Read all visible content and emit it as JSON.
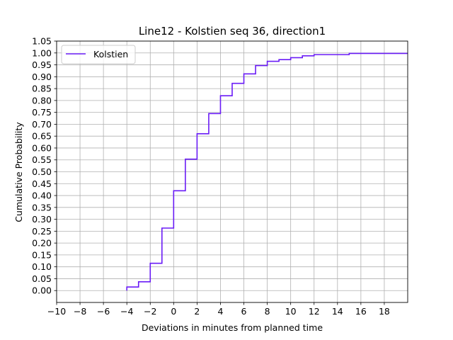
{
  "chart_data": {
    "type": "line",
    "title": "Line12 - Kolstien seq 36, direction1",
    "xlabel": "Deviations in minutes from planned time",
    "ylabel": "Cumulative Probability",
    "xlim": [
      -10,
      20
    ],
    "ylim": [
      -0.05,
      1.05
    ],
    "xticks": [
      -10,
      -8,
      -6,
      -4,
      -2,
      0,
      2,
      4,
      6,
      8,
      10,
      12,
      14,
      16,
      18
    ],
    "xtick_labels": [
      "−10",
      "−8",
      "−6",
      "−4",
      "−2",
      "0",
      "2",
      "4",
      "6",
      "8",
      "10",
      "12",
      "14",
      "16",
      "18"
    ],
    "yticks": [
      0.0,
      0.05,
      0.1,
      0.15,
      0.2,
      0.25,
      0.3,
      0.35,
      0.4,
      0.45,
      0.5,
      0.55,
      0.6,
      0.65,
      0.7,
      0.75,
      0.8,
      0.85,
      0.9,
      0.95,
      1.0,
      1.05
    ],
    "ytick_labels": [
      "0.00",
      "0.05",
      "0.10",
      "0.15",
      "0.20",
      "0.25",
      "0.30",
      "0.35",
      "0.40",
      "0.45",
      "0.50",
      "0.55",
      "0.60",
      "0.65",
      "0.70",
      "0.75",
      "0.80",
      "0.85",
      "0.90",
      "0.95",
      "1.00",
      "1.05"
    ],
    "grid": true,
    "legend_position": "top-left",
    "step": "post",
    "series": [
      {
        "name": "Kolstien",
        "color": "#6a1cf6",
        "x": [
          -4,
          -3,
          -2,
          -1,
          0,
          1,
          2,
          3,
          4,
          5,
          6,
          7,
          8,
          9,
          10,
          11,
          12,
          15,
          20
        ],
        "y": [
          0.015,
          0.037,
          0.115,
          0.263,
          0.42,
          0.553,
          0.66,
          0.745,
          0.82,
          0.872,
          0.912,
          0.947,
          0.965,
          0.972,
          0.98,
          0.988,
          0.993,
          0.998,
          0.998
        ]
      }
    ]
  }
}
